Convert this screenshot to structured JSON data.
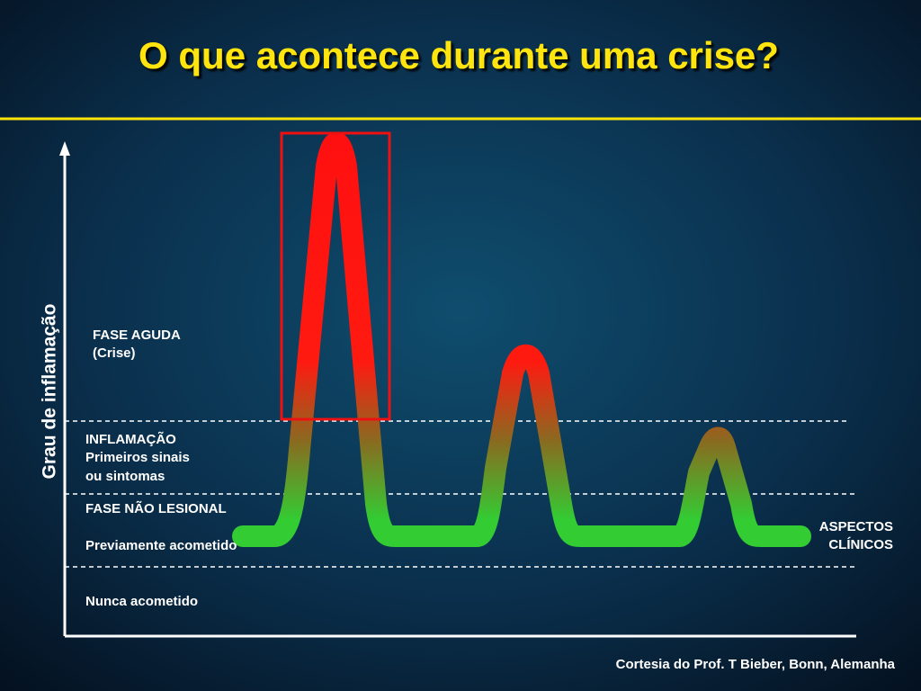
{
  "title": "O que acontece durante uma crise?",
  "y_axis_label": "Grau de inflamação",
  "zones": [
    {
      "lines": [
        "FASE AGUDA",
        "(Crise)"
      ]
    },
    {
      "lines": [
        "INFLAMAÇÃO",
        "Primeiros sinais",
        "ou sintomas"
      ]
    },
    {
      "lines": [
        "FASE NÃO LESIONAL"
      ]
    },
    {
      "lines": [
        "Previamente acometido"
      ]
    },
    {
      "lines": [
        "Nunca acometido"
      ]
    }
  ],
  "right_label": {
    "lines": [
      "ASPECTOS",
      "CLÍNICOS"
    ]
  },
  "credit": "Cortesia do Prof. T Bieber, Bonn, Alemanha"
}
